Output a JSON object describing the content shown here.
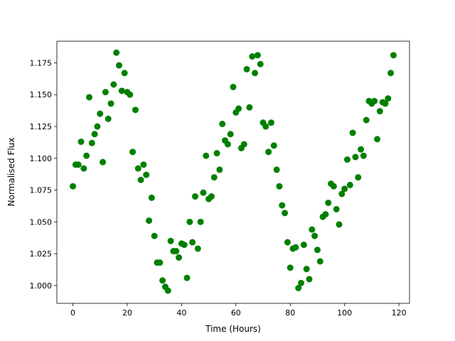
{
  "chart_data": {
    "type": "scatter",
    "x_label": "Time (Hours)",
    "y_label": "Normalised Flux",
    "color": "#008000",
    "x": [
      0,
      1,
      2,
      3,
      4,
      5,
      6,
      7,
      8,
      9,
      10,
      11,
      12,
      13,
      14,
      15,
      16,
      17,
      18,
      19,
      20,
      21,
      22,
      23,
      24,
      25,
      26,
      27,
      28,
      29,
      30,
      31,
      32,
      33,
      34,
      35,
      36,
      37,
      38,
      39,
      40,
      41,
      42,
      43,
      44,
      45,
      46,
      47,
      48,
      49,
      50,
      51,
      52,
      53,
      54,
      55,
      56,
      57,
      58,
      59,
      60,
      61,
      62,
      63,
      64,
      65,
      66,
      67,
      68,
      69,
      70,
      71,
      72,
      73,
      74,
      75,
      76,
      77,
      78,
      79,
      80,
      81,
      82,
      83,
      84,
      85,
      86,
      87,
      88,
      89,
      90,
      91,
      92,
      93,
      94,
      95,
      96,
      97,
      98,
      99,
      100,
      101,
      102,
      103,
      104,
      105,
      106,
      107,
      108,
      109,
      110,
      111,
      112,
      113,
      114,
      115,
      116,
      117,
      118
    ],
    "values": [
      1.078,
      1.095,
      1.095,
      1.113,
      1.092,
      1.102,
      1.148,
      1.112,
      1.119,
      1.125,
      1.135,
      1.097,
      1.152,
      1.131,
      1.143,
      1.158,
      1.183,
      1.173,
      1.153,
      1.167,
      1.152,
      1.15,
      1.105,
      1.138,
      1.092,
      1.083,
      1.095,
      1.087,
      1.051,
      1.069,
      1.039,
      1.018,
      1.018,
      1.004,
      0.999,
      0.996,
      1.035,
      1.027,
      1.027,
      1.022,
      1.033,
      1.032,
      1.006,
      1.05,
      1.034,
      1.07,
      1.029,
      1.05,
      1.073,
      1.102,
      1.068,
      1.07,
      1.085,
      1.104,
      1.091,
      1.127,
      1.114,
      1.111,
      1.119,
      1.156,
      1.136,
      1.139,
      1.108,
      1.111,
      1.17,
      1.14,
      1.18,
      1.167,
      1.181,
      1.174,
      1.128,
      1.125,
      1.105,
      1.128,
      1.11,
      1.091,
      1.078,
      1.063,
      1.057,
      1.034,
      1.014,
      1.029,
      1.03,
      0.998,
      1.002,
      1.032,
      1.013,
      1.005,
      1.044,
      1.039,
      1.028,
      1.019,
      1.054,
      1.056,
      1.065,
      1.08,
      1.078,
      1.06,
      1.048,
      1.072,
      1.076,
      1.099,
      1.079,
      1.12,
      1.101,
      1.085,
      1.107,
      1.102,
      1.13,
      1.145,
      1.143,
      1.145,
      1.115,
      1.137,
      1.144,
      1.143,
      1.147,
      1.167,
      1.181
    ],
    "xlim": [
      -5.9,
      123.9
    ],
    "ylim": [
      0.986,
      1.192
    ],
    "xticks": [
      0,
      20,
      40,
      60,
      80,
      100,
      120
    ],
    "yticks": [
      {
        "value": 1.0,
        "label": "1.000"
      },
      1.025,
      {
        "value": 1.05,
        "label": "1.050"
      },
      1.075,
      {
        "value": 1.1,
        "label": "1.100"
      },
      1.125,
      {
        "value": 1.15,
        "label": "1.150"
      },
      1.175
    ]
  }
}
